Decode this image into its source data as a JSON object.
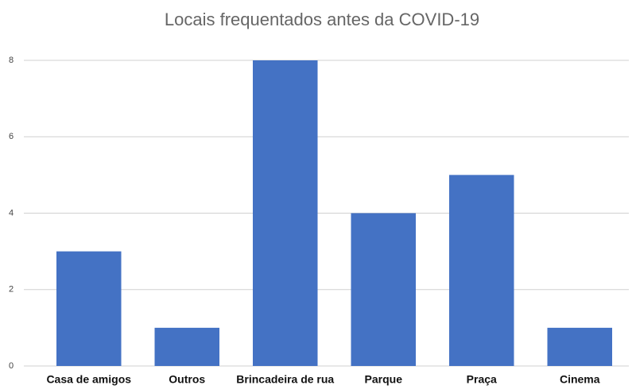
{
  "chart_data": {
    "type": "bar",
    "title": "Locais frequentados antes da COVID-19",
    "categories": [
      "Casa de amigos",
      "Outros",
      "Brincadeira de rua",
      "Parque",
      "Praça",
      "Cinema"
    ],
    "values": [
      3,
      1,
      8,
      4,
      5,
      1
    ],
    "color": "#4472c4",
    "ylim": [
      0,
      8
    ],
    "yticks": [
      0,
      2,
      4,
      6,
      8
    ],
    "grid": true
  }
}
